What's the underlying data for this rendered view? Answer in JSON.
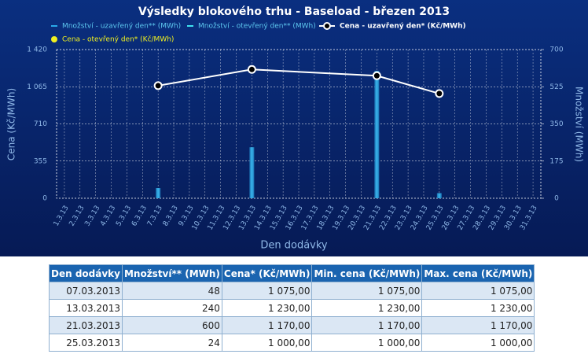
{
  "chart_data": {
    "type": "combo",
    "title": "Výsledky blokového trhu - Baseload - březen 2013",
    "categories": [
      "1.3.13",
      "2.3.13",
      "3.3.13",
      "4.3.13",
      "5.3.13",
      "6.3.13",
      "7.3.13",
      "8.3.13",
      "9.3.13",
      "10.3.13",
      "11.3.13",
      "12.3.13",
      "13.3.13",
      "14.3.13",
      "15.3.13",
      "16.3.13",
      "17.3.13",
      "18.3.13",
      "19.3.13",
      "20.3.13",
      "21.3.13",
      "22.3.13",
      "23.3.13",
      "24.3.13",
      "25.3.13",
      "26.3.13",
      "27.3.13",
      "28.3.13",
      "29.3.13",
      "30.3.13",
      "31.3.13"
    ],
    "x_label": "Den dodávky",
    "y_label": "Cena (Kč/MWh)",
    "y2_label": "Množství (MWh)",
    "ylim": [
      0,
      1420
    ],
    "yticks": [
      0,
      355,
      710,
      {
        "value": 1065,
        "label": "1 065"
      },
      {
        "value": 1420,
        "label": "1 420"
      }
    ],
    "y2lim": [
      0,
      700
    ],
    "y2ticks": [
      0,
      175,
      350,
      525,
      700
    ],
    "grid": true,
    "series": [
      {
        "name": "Množství - uzavřený den** (MWh)",
        "color": "#2aa8e8",
        "kind": "bar",
        "axis": "y2",
        "x": [
          "7.3.13",
          "13.3.13",
          "21.3.13",
          "25.3.13"
        ],
        "values": [
          48,
          240,
          600,
          24
        ]
      },
      {
        "name": "Množství - otevřený den** (MWh)",
        "color": "#3ee0f0",
        "kind": "bar",
        "axis": "y2"
      },
      {
        "name": "Cena - uzavřený den* (Kč/MWh)",
        "color": "#ffffff",
        "kind": "line",
        "x": [
          "7.3.13",
          "13.3.13",
          "21.3.13",
          "25.3.13"
        ],
        "values": [
          1075,
          1230,
          1170,
          1000
        ]
      },
      {
        "name": "Cena - otevřený den* (Kč/MWh)",
        "color": "#f0f020",
        "kind": "dot"
      }
    ]
  },
  "table": {
    "header": [
      "Den dodávky",
      "Množství** (MWh)",
      "Cena* (Kč/MWh)",
      "Min. cena (Kč/MWh)",
      "Max. cena (Kč/MWh)"
    ],
    "rows": [
      [
        "07.03.2013",
        "48",
        "1 075,00",
        "1 075,00",
        "1 075,00"
      ],
      [
        "13.03.2013",
        "240",
        "1 230,00",
        "1 230,00",
        "1 230,00"
      ],
      [
        "21.03.2013",
        "600",
        "1 170,00",
        "1 170,00",
        "1 170,00"
      ],
      [
        "25.03.2013",
        "24",
        "1 000,00",
        "1 000,00",
        "1 000,00"
      ]
    ]
  }
}
